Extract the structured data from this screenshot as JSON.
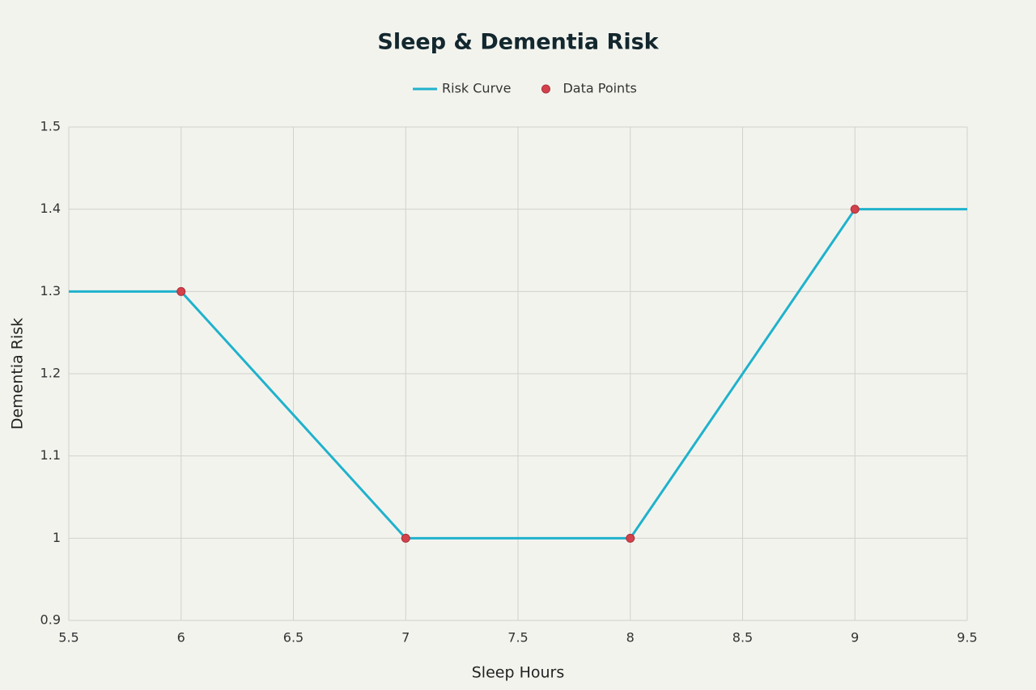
{
  "chart_data": {
    "type": "line",
    "title": "Sleep & Dementia Risk",
    "xlabel": "Sleep Hours",
    "ylabel": "Dementia Risk",
    "series": [
      {
        "name": "Risk Curve",
        "color": "#1fb2cc",
        "mode": "lines",
        "x": [
          5.5,
          6,
          7,
          8,
          9,
          9.5
        ],
        "values": [
          1.3,
          1.3,
          1,
          1,
          1.4,
          1.4
        ]
      },
      {
        "name": "Data Points",
        "color": "#d4414b",
        "mode": "markers",
        "x": [
          6,
          7,
          8,
          9
        ],
        "values": [
          1.3,
          1,
          1,
          1.4
        ]
      }
    ],
    "xlim": [
      5.5,
      9.5
    ],
    "xticks": [
      5.5,
      6,
      6.5,
      7,
      7.5,
      8,
      8.5,
      9,
      9.5
    ],
    "ylim": [
      0.9,
      1.5
    ],
    "yticks": [
      0.9,
      1,
      1.1,
      1.2,
      1.3,
      1.4,
      1.5
    ],
    "grid": true,
    "legend": "top"
  }
}
